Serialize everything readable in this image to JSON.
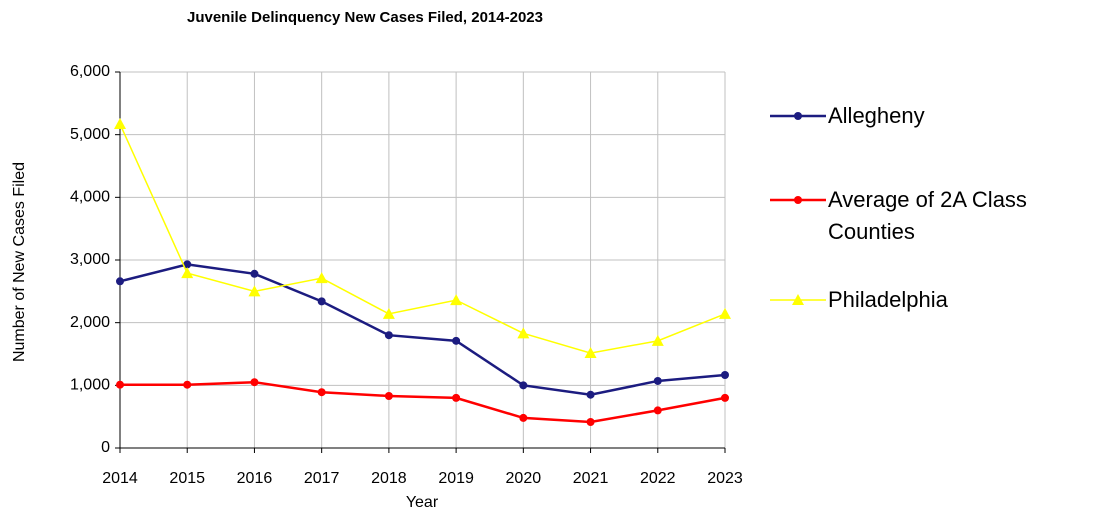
{
  "chart_data": {
    "type": "line",
    "title": "Juvenile Delinquency New Cases Filed, 2014-2023",
    "x_label": "Year",
    "y_label": "Number of New Cases Filed",
    "categories": [
      "2014",
      "2015",
      "2016",
      "2017",
      "2018",
      "2019",
      "2020",
      "2021",
      "2022",
      "2023"
    ],
    "series": [
      {
        "name": "Allegheny",
        "color": "#1c1c80",
        "marker": "circle",
        "values": [
          2660,
          2930,
          2780,
          2340,
          1800,
          1710,
          1000,
          850,
          1070,
          1165
        ]
      },
      {
        "name": "Average of 2A Class Counties",
        "color": "#ff0000",
        "marker": "circle",
        "values": [
          1010,
          1010,
          1050,
          890,
          830,
          800,
          480,
          415,
          600,
          800
        ]
      },
      {
        "name": "Philadelphia",
        "color": "#ffff00",
        "marker": "triangle",
        "values": [
          5170,
          2790,
          2500,
          2710,
          2140,
          2360,
          1830,
          1515,
          1710,
          2140
        ]
      }
    ],
    "ylim": [
      0,
      6000
    ],
    "yticks": [
      0,
      {
        "value": 1000,
        "label": "1,000"
      },
      {
        "value": 2000,
        "label": "2,000"
      },
      {
        "value": 3000,
        "label": "3,000"
      },
      {
        "value": 4000,
        "label": "4,000"
      },
      {
        "value": 5000,
        "label": "5,000"
      },
      {
        "value": 6000,
        "label": "6,000"
      }
    ],
    "grid": true,
    "legend": "right"
  }
}
